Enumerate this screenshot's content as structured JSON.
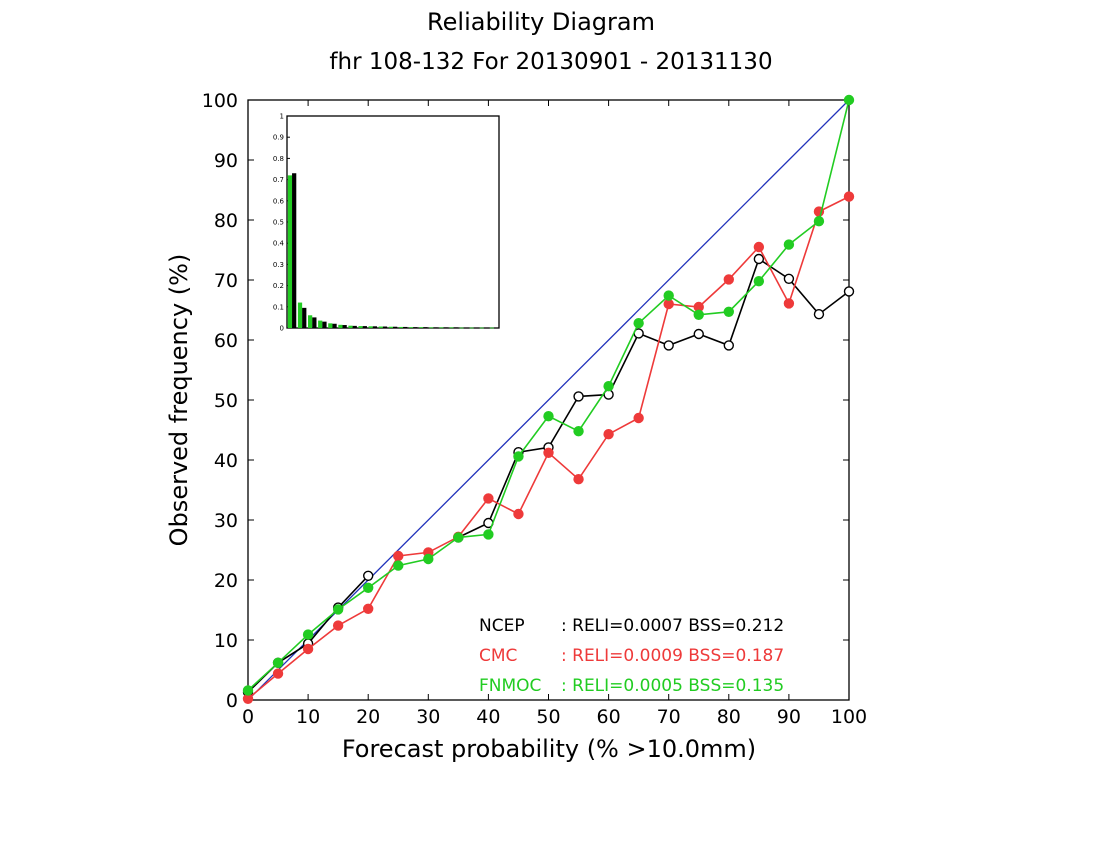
{
  "chart_data": {
    "type": "line",
    "title": "Reliability Diagram",
    "subtitle": "fhr 108-132 For 20130901 - 20131130",
    "xlabel": "Forecast probability (% >10.0mm)",
    "ylabel": "Observed frequency (%)",
    "xlim": [
      0,
      100
    ],
    "ylim": [
      0,
      100
    ],
    "x_ticks": [
      0,
      10,
      20,
      30,
      40,
      50,
      60,
      70,
      80,
      90,
      100
    ],
    "y_ticks": [
      0,
      10,
      20,
      30,
      40,
      50,
      60,
      70,
      80,
      90,
      100
    ],
    "diagonal": {
      "from": [
        0,
        0
      ],
      "to": [
        100,
        100
      ],
      "color": "#2233bb"
    },
    "x": [
      0,
      5,
      10,
      15,
      20,
      25,
      30,
      35,
      40,
      45,
      50,
      55,
      60,
      65,
      70,
      75,
      80,
      85,
      90,
      95,
      100
    ],
    "series": [
      {
        "name": "NCEP",
        "color": "#000000",
        "marker": "open-circle",
        "values": [
          1.3,
          6.2,
          9.4,
          15.4,
          20.7,
          null,
          null,
          27.1,
          29.5,
          41.3,
          42.1,
          50.6,
          50.9,
          61.1,
          59.1,
          61.0,
          59.1,
          73.5,
          70.2,
          64.3,
          68.1
        ],
        "legend_text": "NCEP    : RELI=0.0007  BSS=0.212"
      },
      {
        "name": "CMC",
        "color": "#ee3a3a",
        "marker": "filled-circle",
        "values": [
          0.2,
          4.4,
          8.5,
          12.4,
          15.2,
          24.0,
          24.6,
          27.2,
          33.6,
          31.0,
          41.2,
          36.8,
          44.3,
          47.0,
          66.0,
          65.5,
          70.1,
          75.5,
          66.1,
          81.4,
          83.9
        ],
        "legend_text": "CMC     : RELI=0.0009  BSS=0.187"
      },
      {
        "name": "FNMOC",
        "color": "#22cc22",
        "marker": "filled-circle",
        "values": [
          1.6,
          6.2,
          10.9,
          15.1,
          18.7,
          22.4,
          23.5,
          27.1,
          27.6,
          40.6,
          47.3,
          44.8,
          52.3,
          62.8,
          67.4,
          64.2,
          64.7,
          69.8,
          75.9,
          79.8,
          100.0
        ],
        "legend_text": "FNMOC  : RELI=0.0005  BSS=0.135"
      }
    ],
    "legend_placement": "bottom-right",
    "inset_histogram": {
      "type": "bar",
      "ylim": [
        0,
        1
      ],
      "y_ticks": [
        "0",
        "0.1",
        "0.2",
        "0.3",
        "0.4",
        "0.5",
        "0.6",
        "0.7",
        "0.8",
        "0.9",
        "1"
      ],
      "bins": [
        0,
        5,
        10,
        15,
        20,
        25,
        30,
        35,
        40,
        45,
        50,
        55,
        60,
        65,
        70,
        75,
        80,
        85,
        90,
        95,
        100
      ],
      "series": [
        {
          "name": "FNMOC",
          "color": "#22cc22",
          "values": [
            0.72,
            0.12,
            0.06,
            0.035,
            0.022,
            0.015,
            0.011,
            0.009,
            0.008,
            0.007,
            0.006,
            0.005,
            0.004,
            0.004,
            0.003,
            0.003,
            0.003,
            0.002,
            0.002,
            0.002,
            0.002
          ]
        },
        {
          "name": "NCEP",
          "color": "#000000",
          "values": [
            0.73,
            0.095,
            0.05,
            0.03,
            0.02,
            0.014,
            0.01,
            0.009,
            0.008,
            0.007,
            0.006,
            0.005,
            0.004,
            0.004,
            0.003,
            0.003,
            0.003,
            0.002,
            0.002,
            0.002,
            0.002
          ]
        }
      ]
    }
  }
}
